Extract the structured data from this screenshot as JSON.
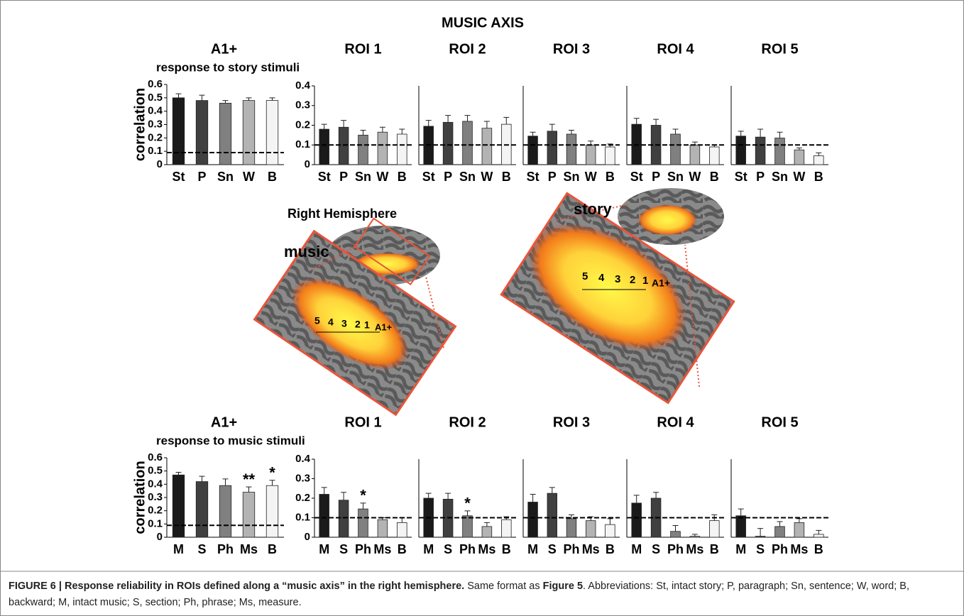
{
  "title": "MUSIC AXIS",
  "chart_data": [
    {
      "type": "bar",
      "title": "A1+",
      "subtitle": "response to story stimuli",
      "y_label": "correlation",
      "categories": [
        "St",
        "P",
        "Sn",
        "W",
        "B"
      ],
      "values": [
        0.5,
        0.48,
        0.46,
        0.48,
        0.48
      ],
      "errors": [
        0.03,
        0.04,
        0.02,
        0.02,
        0.02
      ],
      "colors": [
        "#1a1a1a",
        "#404040",
        "#808080",
        "#b3b3b3",
        "#f4f4f4"
      ],
      "reference_line": 0.09,
      "ylim": [
        0,
        0.6
      ],
      "yticks": [
        0,
        0.1,
        0.2,
        0.3,
        0.4,
        0.5,
        0.6
      ]
    },
    {
      "type": "bar",
      "title": "ROI 1",
      "categories": [
        "St",
        "P",
        "Sn",
        "W",
        "B"
      ],
      "values": [
        0.18,
        0.19,
        0.15,
        0.165,
        0.155
      ],
      "errors": [
        0.025,
        0.035,
        0.025,
        0.025,
        0.025
      ],
      "colors": [
        "#1a1a1a",
        "#404040",
        "#808080",
        "#b3b3b3",
        "#f4f4f4"
      ],
      "reference_line": 0.1,
      "ylim": [
        0,
        0.4
      ],
      "yticks": [
        0,
        0.1,
        0.2,
        0.3,
        0.4
      ]
    },
    {
      "type": "bar",
      "title": "ROI 2",
      "categories": [
        "St",
        "P",
        "Sn",
        "W",
        "B"
      ],
      "values": [
        0.195,
        0.215,
        0.22,
        0.185,
        0.205
      ],
      "errors": [
        0.03,
        0.035,
        0.03,
        0.035,
        0.035
      ],
      "colors": [
        "#1a1a1a",
        "#404040",
        "#808080",
        "#b3b3b3",
        "#f4f4f4"
      ],
      "reference_line": 0.1,
      "ylim": [
        0,
        0.4
      ]
    },
    {
      "type": "bar",
      "title": "ROI 3",
      "categories": [
        "St",
        "P",
        "Sn",
        "W",
        "B"
      ],
      "values": [
        0.145,
        0.17,
        0.155,
        0.1,
        0.09
      ],
      "errors": [
        0.02,
        0.035,
        0.02,
        0.02,
        0.015
      ],
      "colors": [
        "#1a1a1a",
        "#404040",
        "#808080",
        "#b3b3b3",
        "#f4f4f4"
      ],
      "reference_line": 0.1,
      "ylim": [
        0,
        0.4
      ]
    },
    {
      "type": "bar",
      "title": "ROI 4",
      "categories": [
        "St",
        "P",
        "Sn",
        "W",
        "B"
      ],
      "values": [
        0.205,
        0.2,
        0.155,
        0.1,
        0.09
      ],
      "errors": [
        0.03,
        0.03,
        0.025,
        0.015,
        0.01
      ],
      "colors": [
        "#1a1a1a",
        "#404040",
        "#808080",
        "#b3b3b3",
        "#f4f4f4"
      ],
      "reference_line": 0.1,
      "ylim": [
        0,
        0.4
      ]
    },
    {
      "type": "bar",
      "title": "ROI 5",
      "categories": [
        "St",
        "P",
        "Sn",
        "W",
        "B"
      ],
      "values": [
        0.145,
        0.14,
        0.135,
        0.075,
        0.045
      ],
      "errors": [
        0.025,
        0.04,
        0.03,
        0.01,
        0.015
      ],
      "colors": [
        "#1a1a1a",
        "#404040",
        "#808080",
        "#b3b3b3",
        "#f4f4f4"
      ],
      "reference_line": 0.1,
      "ylim": [
        0,
        0.4
      ]
    },
    {
      "type": "bar",
      "title": "A1+",
      "subtitle": "response to music stimuli",
      "y_label": "correlation",
      "categories": [
        "M",
        "S",
        "Ph",
        "Ms",
        "B"
      ],
      "values": [
        0.47,
        0.42,
        0.39,
        0.34,
        0.39
      ],
      "errors": [
        0.02,
        0.04,
        0.05,
        0.04,
        0.04
      ],
      "significance": [
        null,
        null,
        null,
        "**",
        "*"
      ],
      "colors": [
        "#1a1a1a",
        "#404040",
        "#808080",
        "#b3b3b3",
        "#f4f4f4"
      ],
      "reference_line": 0.09,
      "ylim": [
        0,
        0.6
      ],
      "yticks": [
        0,
        0.1,
        0.2,
        0.3,
        0.4,
        0.5,
        0.6
      ]
    },
    {
      "type": "bar",
      "title": "ROI 1",
      "categories": [
        "M",
        "S",
        "Ph",
        "Ms",
        "B"
      ],
      "values": [
        0.22,
        0.19,
        0.145,
        0.09,
        0.075
      ],
      "errors": [
        0.035,
        0.04,
        0.03,
        0.01,
        0.025
      ],
      "significance": [
        null,
        null,
        "*",
        null,
        null
      ],
      "colors": [
        "#1a1a1a",
        "#404040",
        "#808080",
        "#b3b3b3",
        "#f4f4f4"
      ],
      "reference_line": 0.1,
      "ylim": [
        0,
        0.4
      ],
      "yticks": [
        0,
        0.1,
        0.2,
        0.3,
        0.4
      ]
    },
    {
      "type": "bar",
      "title": "ROI 2",
      "categories": [
        "M",
        "S",
        "Ph",
        "Ms",
        "B"
      ],
      "values": [
        0.2,
        0.195,
        0.11,
        0.055,
        0.09
      ],
      "errors": [
        0.025,
        0.03,
        0.025,
        0.02,
        0.015
      ],
      "significance": [
        null,
        null,
        "*",
        null,
        null
      ],
      "colors": [
        "#1a1a1a",
        "#404040",
        "#808080",
        "#b3b3b3",
        "#f4f4f4"
      ],
      "reference_line": 0.1,
      "ylim": [
        0,
        0.4
      ]
    },
    {
      "type": "bar",
      "title": "ROI 3",
      "categories": [
        "M",
        "S",
        "Ph",
        "Ms",
        "B"
      ],
      "values": [
        0.18,
        0.225,
        0.095,
        0.085,
        0.065
      ],
      "errors": [
        0.04,
        0.03,
        0.02,
        0.02,
        0.03
      ],
      "colors": [
        "#1a1a1a",
        "#404040",
        "#808080",
        "#b3b3b3",
        "#f4f4f4"
      ],
      "reference_line": 0.1,
      "ylim": [
        0,
        0.4
      ]
    },
    {
      "type": "bar",
      "title": "ROI 4",
      "categories": [
        "M",
        "S",
        "Ph",
        "Ms",
        "B"
      ],
      "values": [
        0.175,
        0.2,
        0.03,
        0.005,
        0.085
      ],
      "errors": [
        0.04,
        0.03,
        0.03,
        0.01,
        0.03
      ],
      "colors": [
        "#1a1a1a",
        "#404040",
        "#808080",
        "#b3b3b3",
        "#f4f4f4"
      ],
      "reference_line": 0.1,
      "ylim": [
        0,
        0.4
      ]
    },
    {
      "type": "bar",
      "title": "ROI 5",
      "categories": [
        "M",
        "S",
        "Ph",
        "Ms",
        "B"
      ],
      "values": [
        0.11,
        0.005,
        0.055,
        0.075,
        0.015
      ],
      "errors": [
        0.035,
        0.04,
        0.025,
        0.02,
        0.02
      ],
      "colors": [
        "#1a1a1a",
        "#404040",
        "#808080",
        "#b3b3b3",
        "#f4f4f4"
      ],
      "reference_line": 0.1,
      "ylim": [
        0,
        0.4
      ]
    }
  ],
  "brain": {
    "title": "Right Hemisphere",
    "labels": [
      "music",
      "story"
    ],
    "roi_numbers": [
      "5",
      "4",
      "3",
      "2",
      "1"
    ],
    "region": "A1+"
  },
  "caption": {
    "label": "FIGURE 6 | Response reliability in ROIs defined along a “music axis” in the right hemisphere.",
    "text1": " Same format as ",
    "ref": "Figure 5",
    "text2": ". Abbreviations: St, intact story; P, paragraph; Sn, sentence; W, word; B, backward; M, intact music; S, section; Ph, phrase; Ms, measure."
  }
}
